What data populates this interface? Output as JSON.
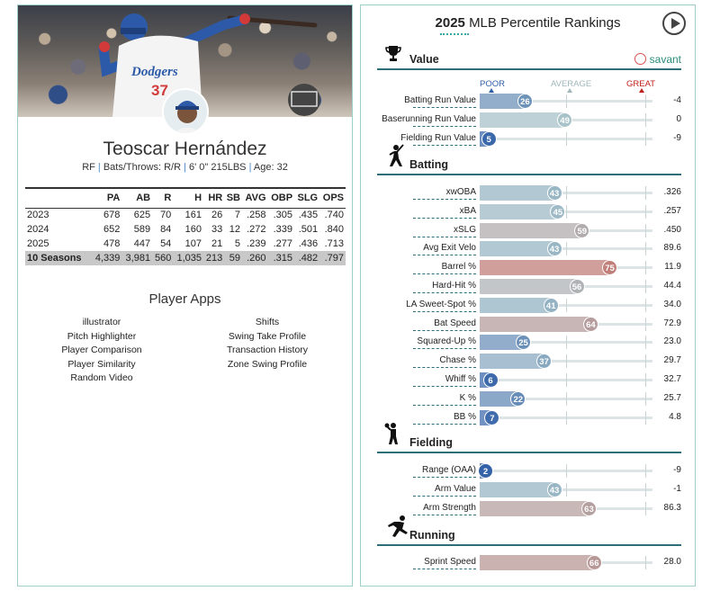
{
  "player": {
    "name": "Teoscar Hernández",
    "position": "RF",
    "bats_throws": "Bats/Throws: R/R",
    "size": "6' 0\" 215LBS",
    "age": "Age: 32",
    "jersey_number": "37",
    "jersey_text": "Dodgers"
  },
  "stats_table": {
    "columns": [
      "",
      "PA",
      "AB",
      "R",
      "H",
      "HR",
      "SB",
      "AVG",
      "OBP",
      "SLG",
      "OPS"
    ],
    "rows": [
      [
        "2023",
        "678",
        "625",
        "70",
        "161",
        "26",
        "7",
        ".258",
        ".305",
        ".435",
        ".740"
      ],
      [
        "2024",
        "652",
        "589",
        "84",
        "160",
        "33",
        "12",
        ".272",
        ".339",
        ".501",
        ".840"
      ],
      [
        "2025",
        "478",
        "447",
        "54",
        "107",
        "21",
        "5",
        ".239",
        ".277",
        ".436",
        ".713"
      ]
    ],
    "total": [
      "10 Seasons",
      "4,339",
      "3,981",
      "560",
      "1,035",
      "213",
      "59",
      ".260",
      ".315",
      ".482",
      ".797"
    ]
  },
  "apps": {
    "title": "Player Apps",
    "left": [
      "illustrator",
      "Pitch Highlighter",
      "Player Comparison",
      "Player Similarity",
      "Random Video"
    ],
    "right": [
      "Shifts",
      "Swing Take Profile",
      "Transaction History",
      "Zone Swing Profile"
    ]
  },
  "rankings": {
    "year": "2025",
    "title": "MLB Percentile Rankings",
    "savant": "savant",
    "scale": {
      "poor": "POOR",
      "average": "AVERAGE",
      "great": "GREAT"
    },
    "colors": {
      "poor": "#2f5ea8",
      "average": "#a9c4c9",
      "great": "#d8392b",
      "poor_label": "#2f5ea8",
      "average_label": "#9fb7bb",
      "great_label": "#c0211a"
    },
    "sections": [
      {
        "name": "Value",
        "icon": "trophy-icon",
        "metrics": [
          {
            "label": "Batting Run Value",
            "pct": 26,
            "value": "-4"
          },
          {
            "label": "Baserunning Run Value",
            "pct": 49,
            "value": "0"
          },
          {
            "label": "Fielding Run Value",
            "pct": 5,
            "value": "-9"
          }
        ]
      },
      {
        "name": "Batting",
        "icon": "batter-icon",
        "metrics": [
          {
            "label": "xwOBA",
            "pct": 43,
            "value": ".326"
          },
          {
            "label": "xBA",
            "pct": 45,
            "value": ".257"
          },
          {
            "label": "xSLG",
            "pct": 59,
            "value": ".450"
          },
          {
            "label": "Avg Exit Velo",
            "pct": 43,
            "value": "89.6"
          },
          {
            "label": "Barrel %",
            "pct": 75,
            "value": "11.9"
          },
          {
            "label": "Hard-Hit %",
            "pct": 56,
            "value": "44.4"
          },
          {
            "label": "LA Sweet-Spot %",
            "pct": 41,
            "value": "34.0"
          },
          {
            "label": "Bat Speed",
            "pct": 64,
            "value": "72.9"
          },
          {
            "label": "Squared-Up %",
            "pct": 25,
            "value": "23.0"
          },
          {
            "label": "Chase %",
            "pct": 37,
            "value": "29.7"
          },
          {
            "label": "Whiff %",
            "pct": 6,
            "value": "32.7"
          },
          {
            "label": "K %",
            "pct": 22,
            "value": "25.7"
          },
          {
            "label": "BB %",
            "pct": 7,
            "value": "4.8"
          }
        ]
      },
      {
        "name": "Fielding",
        "icon": "fielder-icon",
        "metrics": [
          {
            "label": "Range (OAA)",
            "pct": 2,
            "value": "-9"
          },
          {
            "label": "Arm Value",
            "pct": 43,
            "value": "-1"
          },
          {
            "label": "Arm Strength",
            "pct": 63,
            "value": "86.3"
          }
        ]
      },
      {
        "name": "Running",
        "icon": "runner-icon",
        "metrics": [
          {
            "label": "Sprint Speed",
            "pct": 66,
            "value": "28.0"
          }
        ]
      }
    ]
  }
}
